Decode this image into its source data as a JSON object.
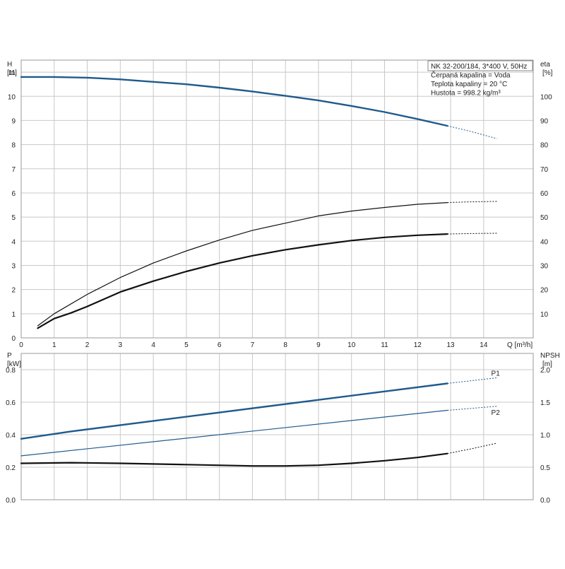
{
  "colors": {
    "blue": "#1f5a8c",
    "black": "#111111",
    "grid": "#c8c8c8",
    "frame": "#9a9a9a"
  },
  "chart_data": [
    {
      "type": "line",
      "title": "",
      "xlabel": "Q [m³/h]",
      "xlim": [
        0,
        15.5
      ],
      "x_ticks": [
        0,
        1,
        2,
        3,
        4,
        5,
        6,
        7,
        8,
        9,
        10,
        11,
        12,
        13,
        14
      ],
      "left_axis": {
        "label_top": "H",
        "label_unit": "[m]",
        "ylim": [
          0,
          11.5
        ],
        "ticks": [
          0,
          1,
          2,
          3,
          4,
          5,
          6,
          7,
          8,
          9,
          10,
          11
        ]
      },
      "right_axis": {
        "label_top": "eta",
        "label_unit": "[%]",
        "ylim": [
          0,
          115
        ],
        "ticks": [
          10,
          20,
          30,
          40,
          50,
          60,
          70,
          80,
          90,
          100
        ]
      },
      "info_box": [
        "NK 32-200/184, 3*400 V, 50Hz",
        "Čerpaná kapalina = Voda",
        "Teplota kapaliny = 20 °C",
        "Hustota = 998.2 kg/m³"
      ],
      "grid": true,
      "series": [
        {
          "key": "H",
          "axis": "left",
          "color": "blue",
          "width": 2.4,
          "x": [
            0,
            1,
            2,
            3,
            4,
            5,
            6,
            7,
            8,
            9,
            10,
            11,
            12,
            12.9
          ],
          "y": [
            10.8,
            10.8,
            10.77,
            10.7,
            10.6,
            10.5,
            10.36,
            10.2,
            10.02,
            9.83,
            9.6,
            9.35,
            9.06,
            8.78
          ],
          "ext_x": [
            12.9,
            13.6,
            14.4
          ],
          "ext_y": [
            8.78,
            8.55,
            8.25
          ]
        },
        {
          "key": "eta_upper",
          "axis": "right",
          "color": "black",
          "width": 1.2,
          "x": [
            0.5,
            1,
            2,
            3,
            4,
            5,
            6,
            7,
            8,
            9,
            10,
            11,
            12,
            12.9
          ],
          "y": [
            5,
            10,
            18,
            25,
            31,
            36,
            40.5,
            44.5,
            47.5,
            50.5,
            52.5,
            54,
            55.3,
            56
          ],
          "ext_x": [
            12.9,
            13.6,
            14.4
          ],
          "ext_y": [
            56,
            56.3,
            56.5
          ]
        },
        {
          "key": "eta_lower",
          "axis": "right",
          "color": "black",
          "width": 2.2,
          "x": [
            0.5,
            1,
            1.5,
            2,
            3,
            4,
            5,
            6,
            7,
            8,
            9,
            10,
            11,
            12,
            12.9
          ],
          "y": [
            4,
            8,
            10.3,
            13,
            19,
            23.5,
            27.5,
            31,
            34,
            36.5,
            38.5,
            40.3,
            41.6,
            42.5,
            43
          ],
          "ext_x": [
            12.9,
            13.6,
            14.4
          ],
          "ext_y": [
            43,
            43.2,
            43.3
          ]
        }
      ]
    },
    {
      "type": "line",
      "title": "",
      "xlabel": "",
      "xlim": [
        0,
        15.5
      ],
      "x_ticks": [
        0,
        1,
        2,
        3,
        4,
        5,
        6,
        7,
        8,
        9,
        10,
        11,
        12,
        13,
        14
      ],
      "left_axis": {
        "label_top": "P",
        "label_unit": "[kW]",
        "ylim": [
          0,
          0.9
        ],
        "ticks": [
          "0.0",
          "0.2",
          "0.4",
          "0.6",
          "0.8"
        ]
      },
      "right_axis": {
        "label_top": "NPSH",
        "label_unit": "[m]",
        "ylim": [
          0,
          2.25
        ],
        "ticks": [
          "0.0",
          "0.5",
          "1.0",
          "1.5",
          "2.0"
        ]
      },
      "grid": true,
      "series": [
        {
          "key": "P1",
          "name": "P1",
          "axis": "left",
          "color": "blue",
          "width": 2.4,
          "x": [
            0,
            1.5,
            12.9
          ],
          "y": [
            0.375,
            0.42,
            0.715
          ],
          "ext_x": [
            12.9,
            14.4
          ],
          "ext_y": [
            0.715,
            0.75
          ]
        },
        {
          "key": "P2",
          "name": "P2",
          "axis": "left",
          "color": "blue",
          "width": 1.2,
          "x": [
            0,
            12.9
          ],
          "y": [
            0.27,
            0.55
          ],
          "ext_x": [
            12.9,
            14.4
          ],
          "ext_y": [
            0.55,
            0.575
          ]
        },
        {
          "key": "NPSH",
          "axis": "right",
          "color": "black",
          "width": 2.2,
          "x": [
            0,
            1.5,
            3,
            5,
            7,
            8,
            9,
            10,
            11,
            12,
            12.9
          ],
          "y": [
            0.56,
            0.57,
            0.56,
            0.54,
            0.52,
            0.52,
            0.53,
            0.56,
            0.6,
            0.65,
            0.71
          ],
          "ext_x": [
            12.9,
            13.6,
            14.4
          ],
          "ext_y": [
            0.71,
            0.78,
            0.87
          ]
        }
      ]
    }
  ]
}
